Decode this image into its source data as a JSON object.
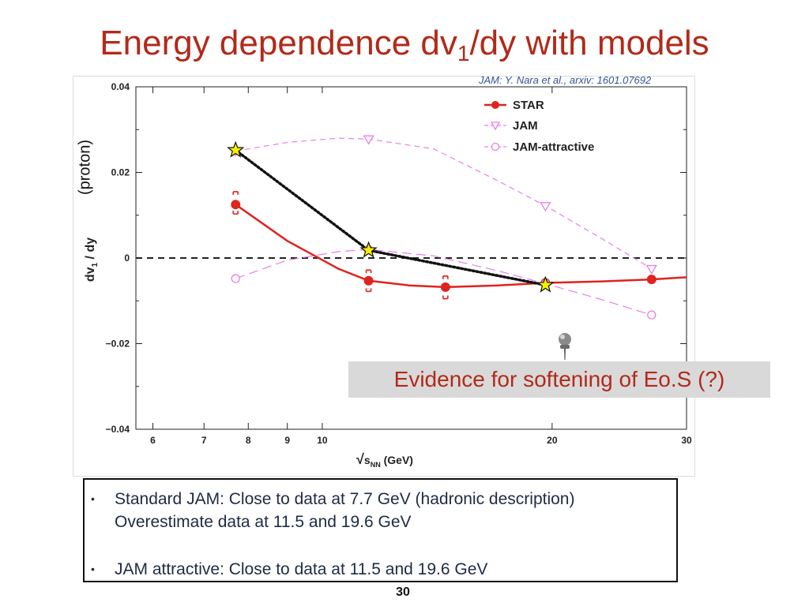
{
  "slide": {
    "title_main": "Energy dependence dv",
    "title_sub": "1",
    "title_end": "/dy with models",
    "reference": "JAM: Y. Nara et al., arxiv: 1601.07692",
    "ylabel_extra": "(proton)",
    "callout": "Evidence for softening of Eo.S (?)",
    "bullets": [
      {
        "marker": "•",
        "line1": "Standard JAM: Close to data at 7.7 GeV (hadronic description)",
        "line2": "Overestimate data at 11.5 and 19.6 GeV"
      },
      {
        "marker": "•",
        "line1": "JAM attractive: Close to data at 11.5 and 19.6 GeV"
      }
    ],
    "page_number": "30",
    "colors": {
      "title": "#b22a1a",
      "star": "#f5f000",
      "reference": "#2f5596"
    }
  },
  "chart_data": {
    "type": "scatter",
    "x_scale": "log",
    "xlim": [
      5.7,
      30
    ],
    "ylim": [
      -0.04,
      0.04
    ],
    "xticks": [
      6,
      7,
      8,
      9,
      10,
      20,
      30
    ],
    "yticks": [
      -0.04,
      -0.02,
      0,
      0.02,
      0.04
    ],
    "ytick_labels": [
      "−0.04",
      "−0.02",
      "0",
      "0.02",
      "0.04"
    ],
    "xlabel": "√s_NN (GeV)",
    "xlabel_parts": {
      "root": "√",
      "s": "s",
      "sub": "NN",
      "unit": " (GeV)"
    },
    "ylabel_parts": {
      "main": "dv",
      "sub": "1",
      "end": " / dy"
    },
    "zero_line": true,
    "series": [
      {
        "name": "STAR",
        "color": "#e0231f",
        "marker": "circle-filled",
        "line": "solid",
        "x": [
          7.7,
          11.5,
          14.5,
          19.6,
          27
        ],
        "y": [
          0.0125,
          -0.0053,
          -0.0068,
          -0.0058,
          -0.005
        ],
        "curve_x": [
          7.7,
          9,
          10.5,
          11.5,
          13,
          14.5,
          17,
          19.6,
          23,
          27,
          30
        ],
        "curve_y": [
          0.0125,
          0.004,
          -0.0025,
          -0.0053,
          -0.0064,
          -0.0068,
          -0.0064,
          -0.0058,
          -0.0055,
          -0.005,
          -0.0045
        ]
      },
      {
        "name": "JAM",
        "color": "#e87fe8",
        "marker": "triangle-down-open",
        "line": "dashed",
        "x": [
          7.7,
          11.5,
          19.6,
          27
        ],
        "y": [
          0.025,
          0.0278,
          0.0122,
          -0.0025
        ],
        "curve_x": [
          7.7,
          9,
          10.5,
          11.5,
          14,
          17,
          19.6,
          23,
          27
        ],
        "curve_y": [
          0.025,
          0.027,
          0.028,
          0.0278,
          0.0255,
          0.018,
          0.0122,
          0.005,
          -0.0025
        ]
      },
      {
        "name": "JAM-attractive",
        "color": "#e87fe8",
        "marker": "circle-open",
        "line": "longdash",
        "x": [
          7.7,
          11.5,
          19.6,
          27
        ],
        "y": [
          -0.0048,
          0.002,
          -0.006,
          -0.0133
        ],
        "curve_x": [
          7.7,
          9,
          10.5,
          11.5,
          14,
          17,
          19.6,
          23,
          27
        ],
        "curve_y": [
          -0.0048,
          -0.0005,
          0.0015,
          0.002,
          0.0005,
          -0.003,
          -0.006,
          -0.0095,
          -0.0133
        ]
      },
      {
        "name": "",
        "color": "#111111",
        "marker": "star",
        "line": "dotted",
        "x": [
          7.7,
          11.5,
          19.6
        ],
        "y": [
          0.0252,
          0.0018,
          -0.0063
        ]
      }
    ],
    "star_systematics": {
      "x": [
        7.7,
        11.5,
        14.5
      ],
      "y_low": [
        0.0103,
        -0.0078,
        -0.0095
      ],
      "y_high": [
        0.0155,
        -0.0028,
        -0.0042
      ]
    }
  }
}
